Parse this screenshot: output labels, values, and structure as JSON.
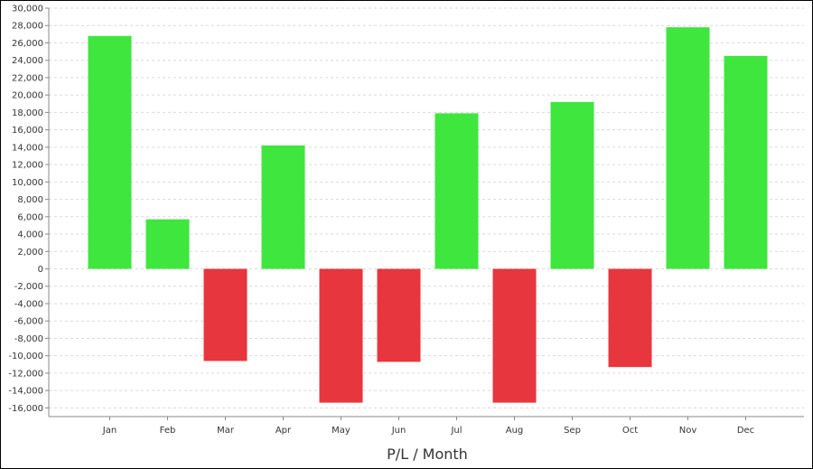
{
  "chart_data": {
    "type": "bar",
    "title": "",
    "xlabel": "P/L / Month",
    "ylabel": "",
    "categories": [
      "Jan",
      "Feb",
      "Mar",
      "Apr",
      "May",
      "Jun",
      "Jul",
      "Aug",
      "Sep",
      "Oct",
      "Nov",
      "Dec"
    ],
    "values": [
      26800,
      5700,
      -10600,
      14200,
      -15400,
      -10700,
      17900,
      -15400,
      19200,
      -11300,
      27800,
      24500
    ],
    "ylim": [
      -17000,
      30000
    ],
    "yticks": [
      30000,
      28000,
      26000,
      24000,
      22000,
      20000,
      18000,
      16000,
      14000,
      12000,
      10000,
      8000,
      6000,
      4000,
      2000,
      0,
      -2000,
      -4000,
      -6000,
      -8000,
      -10000,
      -12000,
      -14000,
      -16000
    ],
    "ytick_labels": [
      "30,000",
      "28,000",
      "26,000",
      "24,000",
      "22,000",
      "20,000",
      "18,000",
      "16,000",
      "14,000",
      "12,000",
      "10,000",
      "8,000",
      "6,000",
      "4,000",
      "2,000",
      "0",
      "-2,000",
      "-4,000",
      "-6,000",
      "-8,000",
      "-10,000",
      "-12,000",
      "-14,000",
      "-16,000"
    ],
    "grid": true,
    "legend": "none",
    "colors": {
      "positive": "#3ee63e",
      "negative": "#e8363e",
      "grid": "#d9d9d9",
      "axis": "#888888"
    }
  }
}
